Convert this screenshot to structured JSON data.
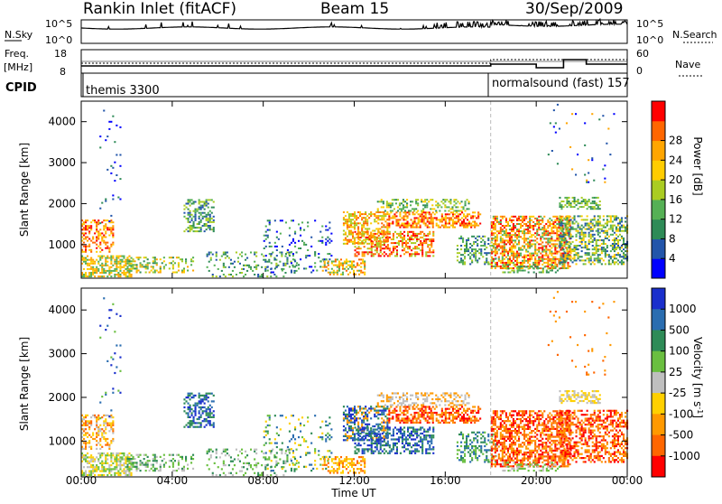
{
  "header": {
    "station": "Rankin Inlet (fitACF)",
    "beam": "Beam 15",
    "date": "30/Sep/2009"
  },
  "noise_panel": {
    "left_label": "N.Sky",
    "right_label": "N.Search",
    "left_ticks": [
      "10^5",
      "10^0"
    ],
    "right_ticks": [
      "10^5",
      "10^0"
    ]
  },
  "freq_panel": {
    "left_label": "Freq.",
    "left_unit": "[MHz]",
    "right_label": "Nave",
    "left_ticks": [
      "18",
      "8"
    ],
    "right_ticks": [
      "60",
      "0"
    ]
  },
  "cpid_panel": {
    "label": "CPID",
    "modes": [
      {
        "name": "themis 3300",
        "start_hour": 0
      },
      {
        "name": "normalsound (fast) 157",
        "start_hour": 18.0
      }
    ]
  },
  "chart_data": [
    {
      "type": "heatmap",
      "name": "power",
      "ylabel": "Slant Range [km]",
      "xlabel": "Time UT",
      "xlim": [
        "00:00",
        "24:00"
      ],
      "ylim": [
        180,
        4500
      ],
      "x_ticks": [
        "00:00",
        "04:00",
        "08:00",
        "12:00",
        "16:00",
        "20:00",
        "00:00"
      ],
      "y_ticks": [
        1000,
        2000,
        3000,
        4000
      ],
      "colorbar": {
        "label": "Power [dB]",
        "ticks": [
          4,
          8,
          12,
          16,
          20,
          24,
          28
        ],
        "colors": [
          "#0000ff",
          "#2255aa",
          "#2e8b57",
          "#55b055",
          "#aacc22",
          "#ffcc00",
          "#ffa500",
          "#ff6600",
          "#ff0000"
        ]
      }
    },
    {
      "type": "heatmap",
      "name": "velocity",
      "ylabel": "Slant Range [km]",
      "xlabel": "Time UT",
      "xlim": [
        "00:00",
        "24:00"
      ],
      "ylim": [
        180,
        4500
      ],
      "x_ticks": [
        "00:00",
        "04:00",
        "08:00",
        "12:00",
        "16:00",
        "20:00",
        "00:00"
      ],
      "y_ticks": [
        1000,
        2000,
        3000,
        4000
      ],
      "colorbar": {
        "label": "Velocity [m s^-1]",
        "ticks": [
          1000,
          500,
          100,
          25,
          -25,
          -100,
          -500,
          -1000
        ],
        "colors": [
          "#1a2fcc",
          "#2a6db0",
          "#2e8b57",
          "#6abf40",
          "#bfbfbf",
          "#ffd000",
          "#ff9900",
          "#ff6600",
          "#ff0000"
        ]
      }
    }
  ],
  "axis": {
    "time_label": "Time UT",
    "x_ticks": [
      "00:00",
      "04:00",
      "08:00",
      "12:00",
      "16:00",
      "20:00",
      "00:00"
    ]
  }
}
